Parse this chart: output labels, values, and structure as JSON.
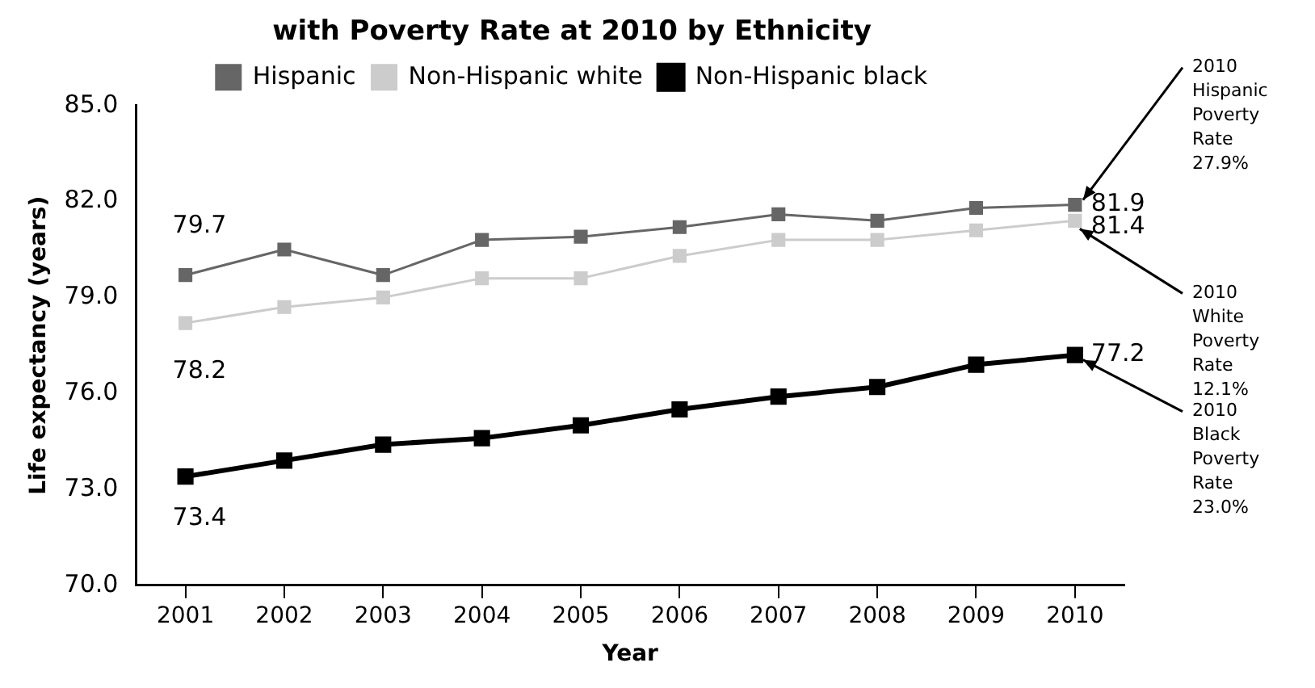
{
  "chart_data": {
    "type": "line",
    "title": "with Poverty Rate at 2010 by Ethnicity",
    "xlabel": "Year",
    "ylabel": "Life expectancy (years)",
    "categories": [
      "2001",
      "2002",
      "2003",
      "2004",
      "2005",
      "2006",
      "2007",
      "2008",
      "2009",
      "2010"
    ],
    "series": [
      {
        "name": "Hispanic",
        "color": "#666666",
        "values": [
          79.7,
          80.5,
          79.7,
          80.8,
          80.9,
          81.2,
          81.6,
          81.4,
          81.8,
          81.9
        ],
        "value_labels": [
          "79.7",
          null,
          null,
          null,
          null,
          null,
          null,
          null,
          null,
          "81.9"
        ]
      },
      {
        "name": "Non-Hispanic white",
        "color": "#cccccc",
        "values": [
          78.2,
          78.7,
          79.0,
          79.6,
          79.6,
          80.3,
          80.8,
          80.8,
          81.1,
          81.4
        ],
        "value_labels": [
          "78.2",
          null,
          null,
          null,
          null,
          null,
          null,
          null,
          null,
          "81.4"
        ]
      },
      {
        "name": "Non-Hispanic black",
        "color": "#000000",
        "values": [
          73.4,
          73.9,
          74.4,
          74.6,
          75.0,
          75.5,
          75.9,
          76.2,
          76.9,
          77.2
        ],
        "value_labels": [
          "73.4",
          null,
          null,
          null,
          null,
          null,
          null,
          null,
          null,
          "77.2"
        ]
      }
    ],
    "ylim": [
      70,
      85
    ],
    "yticks": [
      {
        "value": 70,
        "label": "70.0"
      },
      {
        "value": 73,
        "label": "73.0"
      },
      {
        "value": 76,
        "label": "76.0"
      },
      {
        "value": 79,
        "label": "79.0"
      },
      {
        "value": 82,
        "label": "82.0"
      },
      {
        "value": 85,
        "label": "85.0"
      }
    ],
    "annotations": [
      {
        "text": "2010 Hispanic Poverty Rate 27.9%",
        "x": "2010",
        "y": 81.9
      },
      {
        "text": "2010 White Poverty Rate 12.1%",
        "x": "2010",
        "y": 81.4
      },
      {
        "text": "2010 Black Poverty Rate 23.0%",
        "x": "2010",
        "y": 77.2
      }
    ],
    "grid": false,
    "legend": "top",
    "marker": "square"
  }
}
